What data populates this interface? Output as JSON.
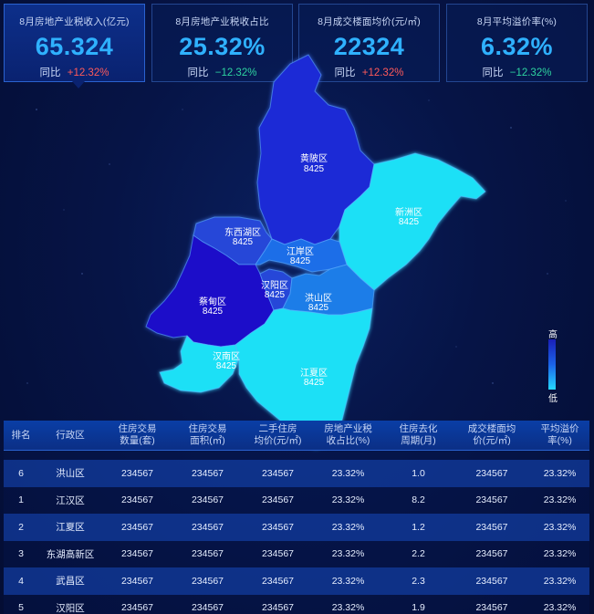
{
  "kpis": [
    {
      "title": "8月房地产业税收入(亿元)",
      "value": "65.324",
      "yoy_label": "同比",
      "yoy": "+12.32%",
      "trend": "up"
    },
    {
      "title": "8月房地产业税收占比",
      "value": "25.32%",
      "yoy_label": "同比",
      "yoy": "−12.32%",
      "trend": "down"
    },
    {
      "title": "8月成交楼面均价(元/㎡)",
      "value": "22324",
      "yoy_label": "同比",
      "yoy": "+12.32%",
      "trend": "up"
    },
    {
      "title": "8月平均溢价率(%)",
      "value": "6.32%",
      "yoy_label": "同比",
      "yoy": "−12.32%",
      "trend": "down"
    }
  ],
  "map": {
    "districts": [
      {
        "name": "黄陂区",
        "value": "8425",
        "level": "high"
      },
      {
        "name": "新洲区",
        "value": "8425",
        "level": "low"
      },
      {
        "name": "东西湖区",
        "value": "8425",
        "level": "mid-high"
      },
      {
        "name": "江岸区",
        "value": "8425",
        "level": "mid"
      },
      {
        "name": "蔡甸区",
        "value": "8425",
        "level": "highest"
      },
      {
        "name": "汉阳区",
        "value": "8425",
        "level": "mid-high"
      },
      {
        "name": "洪山区",
        "value": "8425",
        "level": "mid"
      },
      {
        "name": "汉南区",
        "value": "8425",
        "level": "low"
      },
      {
        "name": "江夏区",
        "value": "8425",
        "level": "low"
      }
    ],
    "legend": {
      "high": "高",
      "low": "低"
    },
    "colors": {
      "highest": "#1a10c9",
      "high": "#1f2bd6",
      "mid-high": "#2546d8",
      "mid": "#1d7de8",
      "low": "#1fe0f6"
    }
  },
  "table": {
    "headers": [
      "排名",
      "行政区",
      "住房交易\n数量(套)",
      "住房交易\n面积(㎡)",
      "二手住房\n均价(元/㎡)",
      "房地产业税\n收占比(%)",
      "住房去化\n周期(月)",
      "成交楼面均\n价(元/㎡)",
      "平均溢价\n率(%)"
    ],
    "rows": [
      [
        "6",
        "洪山区",
        "234567",
        "234567",
        "234567",
        "23.32%",
        "1.0",
        "234567",
        "23.32%"
      ],
      [
        "1",
        "江汉区",
        "234567",
        "234567",
        "234567",
        "23.32%",
        "8.2",
        "234567",
        "23.32%"
      ],
      [
        "2",
        "江夏区",
        "234567",
        "234567",
        "234567",
        "23.32%",
        "1.2",
        "234567",
        "23.32%"
      ],
      [
        "3",
        "东湖高新区",
        "234567",
        "234567",
        "234567",
        "23.32%",
        "2.2",
        "234567",
        "23.32%"
      ],
      [
        "4",
        "武昌区",
        "234567",
        "234567",
        "234567",
        "23.32%",
        "2.3",
        "234567",
        "23.32%"
      ],
      [
        "5",
        "汉阳区",
        "234567",
        "234567",
        "234567",
        "23.32%",
        "1.9",
        "234567",
        "23.32%"
      ]
    ]
  }
}
